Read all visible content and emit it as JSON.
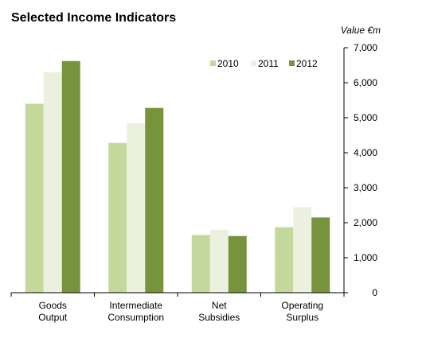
{
  "chart_data": {
    "type": "bar",
    "title": "Selected Income Indicators",
    "ylabel": "Value €m",
    "xlabel": "",
    "categories": [
      "Goods\nOutput",
      "Intermediate\nConsumption",
      "Net\nSubsidies",
      "Operating\nSurplus"
    ],
    "series": [
      {
        "name": "2010",
        "color": "#c4d89c",
        "values": [
          5400,
          4280,
          1650,
          1870
        ]
      },
      {
        "name": "2011",
        "color": "#ebf1de",
        "values": [
          6300,
          4850,
          1800,
          2440
        ]
      },
      {
        "name": "2012",
        "color": "#77933c",
        "values": [
          6620,
          5280,
          1620,
          2150
        ]
      }
    ],
    "ylim": [
      0,
      7000
    ],
    "yticks": [
      0,
      1000,
      2000,
      3000,
      4000,
      5000,
      6000,
      7000
    ],
    "ytick_labels": [
      "0",
      "1,000",
      "2,000",
      "3,000",
      "4,000",
      "5,000",
      "6,000",
      "7,000"
    ],
    "y_axis_position": "right",
    "grid": false,
    "legend_position": "top-right"
  }
}
